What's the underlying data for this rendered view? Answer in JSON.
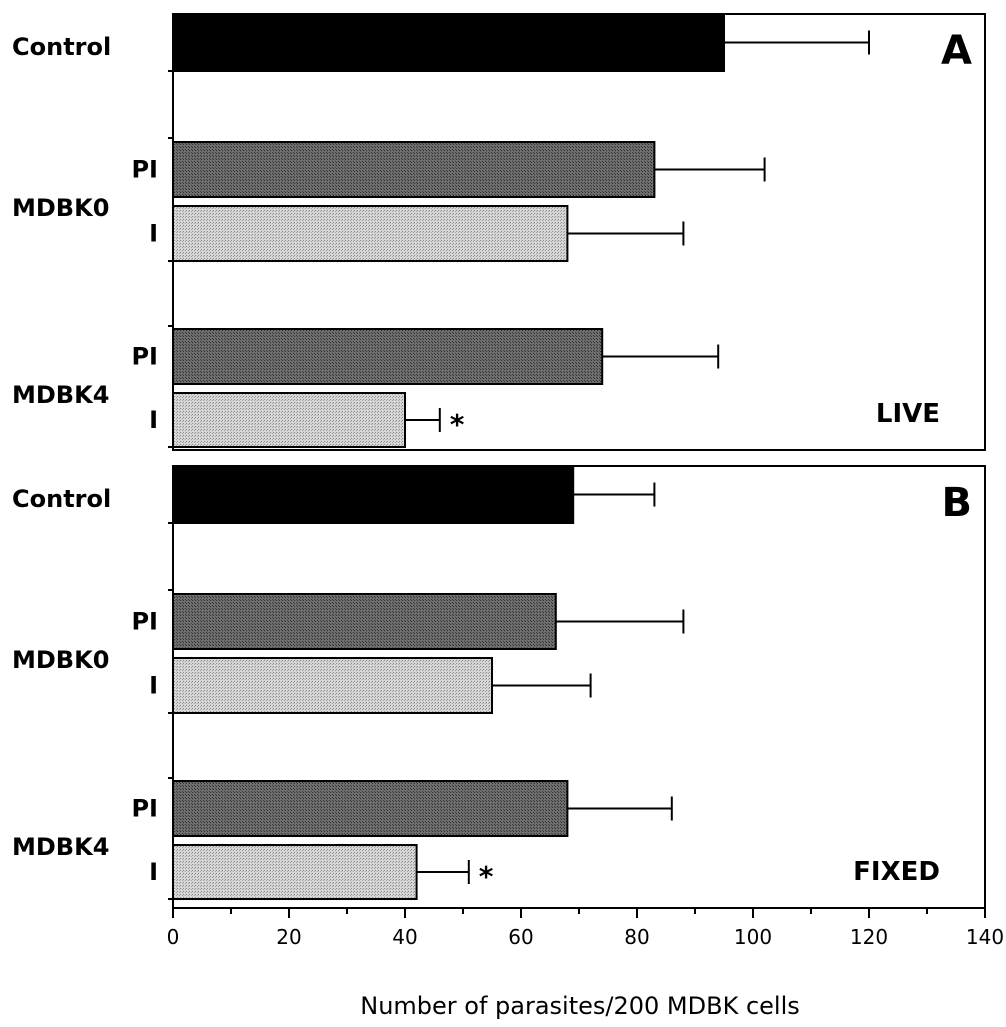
{
  "chart_data": [
    {
      "type": "bar",
      "orientation": "horizontal",
      "panel_label": "A",
      "condition": "LIVE",
      "groups": [
        {
          "label": "Control",
          "bars": [
            {
              "sublabel": "",
              "value": 95,
              "error": 25,
              "fill": "solid",
              "sig": ""
            }
          ]
        },
        {
          "label": "MDBK0",
          "bars": [
            {
              "sublabel": "PI",
              "value": 83,
              "error": 19,
              "fill": "dark",
              "sig": ""
            },
            {
              "sublabel": "I",
              "value": 68,
              "error": 20,
              "fill": "light",
              "sig": ""
            }
          ]
        },
        {
          "label": "MDBK4",
          "bars": [
            {
              "sublabel": "PI",
              "value": 74,
              "error": 20,
              "fill": "dark",
              "sig": ""
            },
            {
              "sublabel": "I",
              "value": 40,
              "error": 6,
              "fill": "light",
              "sig": "*"
            }
          ]
        }
      ],
      "xlim": [
        0,
        140
      ]
    },
    {
      "type": "bar",
      "orientation": "horizontal",
      "panel_label": "B",
      "condition": "FIXED",
      "groups": [
        {
          "label": "Control",
          "bars": [
            {
              "sublabel": "",
              "value": 69,
              "error": 14,
              "fill": "solid",
              "sig": ""
            }
          ]
        },
        {
          "label": "MDBK0",
          "bars": [
            {
              "sublabel": "PI",
              "value": 66,
              "error": 22,
              "fill": "dark",
              "sig": ""
            },
            {
              "sublabel": "I",
              "value": 55,
              "error": 17,
              "fill": "light",
              "sig": ""
            }
          ]
        },
        {
          "label": "MDBK4",
          "bars": [
            {
              "sublabel": "PI",
              "value": 68,
              "error": 18,
              "fill": "dark",
              "sig": ""
            },
            {
              "sublabel": "I",
              "value": 42,
              "error": 9,
              "fill": "light",
              "sig": "*"
            }
          ]
        }
      ],
      "xlim": [
        0,
        140
      ]
    }
  ],
  "x_axis": {
    "ticks": [
      0,
      20,
      40,
      60,
      80,
      100,
      120,
      140
    ],
    "label": "Number of parasites/200 MDBK cells"
  },
  "colors": {
    "solid": "#000000",
    "dark": "#5a5a5a",
    "light": "#c8c8c8",
    "axis": "#000000"
  }
}
